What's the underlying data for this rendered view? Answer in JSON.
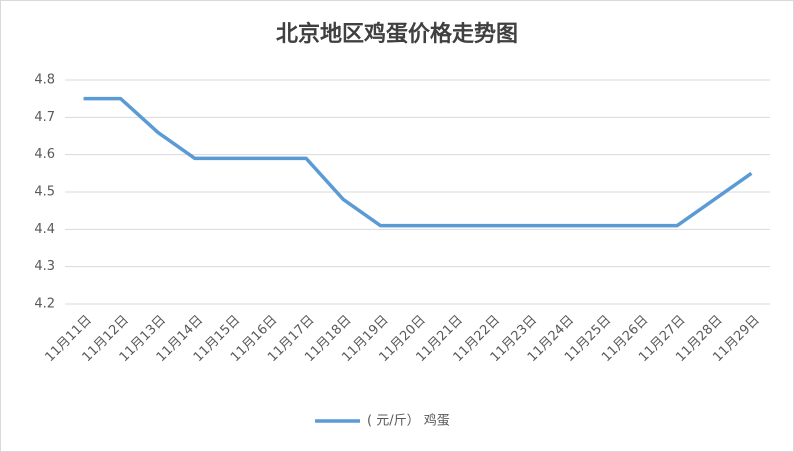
{
  "chart_data": {
    "type": "line",
    "title": "北京地区鸡蛋价格走势图",
    "categories": [
      "11月11日",
      "11月12日",
      "11月13日",
      "11月14日",
      "11月15日",
      "11月16日",
      "11月17日",
      "11月18日",
      "11月19日",
      "11月20日",
      "11月21日",
      "11月22日",
      "11月23日",
      "11月24日",
      "11月25日",
      "11月26日",
      "11月27日",
      "11月28日",
      "11月29日"
    ],
    "series": [
      {
        "name": "( 元/斤） 鸡蛋",
        "color": "#5b9bd5",
        "values": [
          4.75,
          4.75,
          4.66,
          4.59,
          4.59,
          4.59,
          4.59,
          4.48,
          4.41,
          4.41,
          4.41,
          4.41,
          4.41,
          4.41,
          4.41,
          4.41,
          4.41,
          4.48,
          4.55
        ]
      }
    ],
    "ylim": [
      4.2,
      4.8
    ],
    "yticks": [
      4.2,
      4.3,
      4.4,
      4.5,
      4.6,
      4.7,
      4.8
    ],
    "grid": true,
    "legend": "bottom"
  }
}
